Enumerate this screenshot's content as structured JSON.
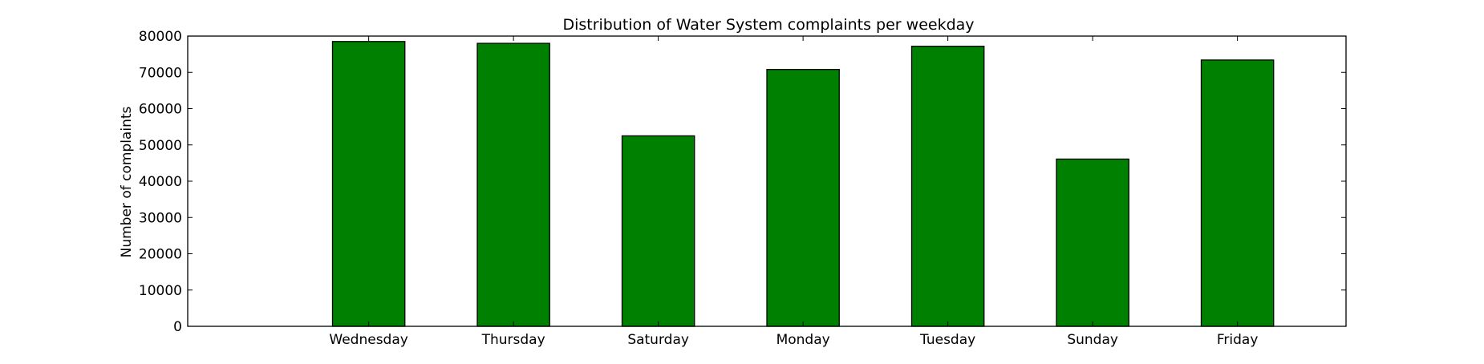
{
  "chart_data": {
    "type": "bar",
    "title": "Distribution of  Water System complaints per weekday",
    "xlabel": "",
    "ylabel": "Number of complaints",
    "categories": [
      "Wednesday",
      "Thursday",
      "Saturday",
      "Monday",
      "Tuesday",
      "Sunday",
      "Friday"
    ],
    "values": [
      78500,
      78000,
      52500,
      70800,
      77200,
      46100,
      73400
    ],
    "ylim": [
      0,
      80000
    ],
    "yticks": [
      0,
      10000,
      20000,
      30000,
      40000,
      50000,
      60000,
      70000,
      80000
    ],
    "xlim": [
      -1.25,
      6.75
    ],
    "grid": false,
    "legend": "none",
    "colors": {
      "bar_fill": "#008000",
      "bar_edge": "#000000",
      "axes": "#000000"
    }
  }
}
